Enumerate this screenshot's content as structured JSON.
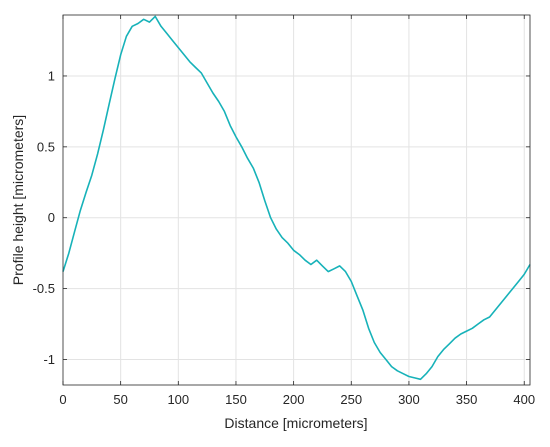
{
  "chart_data": {
    "type": "line",
    "title": "",
    "xlabel": "Distance [micrometers]",
    "ylabel": "Profile height [micrometers]",
    "xlim": [
      0,
      405
    ],
    "ylim": [
      -1.18,
      1.43
    ],
    "xticks": [
      0,
      50,
      100,
      150,
      200,
      250,
      300,
      350,
      400
    ],
    "xtick_labels": [
      "0",
      "50",
      "100",
      "150",
      "200",
      "250",
      "300",
      "350",
      "400"
    ],
    "yticks": [
      1,
      0.5,
      0,
      -0.5,
      -1
    ],
    "ytick_labels": [
      "1",
      "0.5",
      "0",
      "-0.5",
      "-1"
    ],
    "grid": true,
    "legend": "none",
    "line_color": "#17b2b9",
    "series": [
      {
        "x": [
          0,
          5,
          10,
          15,
          20,
          25,
          30,
          35,
          40,
          45,
          50,
          55,
          60,
          65,
          70,
          75,
          80,
          85,
          90,
          95,
          100,
          105,
          110,
          115,
          120,
          125,
          130,
          135,
          140,
          145,
          150,
          155,
          160,
          165,
          170,
          175,
          180,
          185,
          190,
          195,
          200,
          205,
          210,
          215,
          220,
          225,
          230,
          235,
          240,
          245,
          250,
          255,
          260,
          265,
          270,
          275,
          280,
          285,
          290,
          295,
          300,
          305,
          310,
          315,
          320,
          325,
          330,
          335,
          340,
          345,
          350,
          355,
          360,
          365,
          370,
          375,
          380,
          385,
          390,
          395,
          400,
          405
        ],
        "values": [
          -0.38,
          -0.25,
          -0.1,
          0.05,
          0.18,
          0.3,
          0.45,
          0.62,
          0.8,
          0.98,
          1.15,
          1.28,
          1.35,
          1.37,
          1.4,
          1.38,
          1.42,
          1.35,
          1.3,
          1.25,
          1.2,
          1.15,
          1.1,
          1.06,
          1.02,
          0.95,
          0.88,
          0.82,
          0.75,
          0.65,
          0.57,
          0.5,
          0.42,
          0.35,
          0.25,
          0.12,
          0.0,
          -0.08,
          -0.14,
          -0.18,
          -0.23,
          -0.26,
          -0.3,
          -0.33,
          -0.3,
          -0.34,
          -0.38,
          -0.36,
          -0.34,
          -0.38,
          -0.45,
          -0.55,
          -0.65,
          -0.78,
          -0.88,
          -0.95,
          -1.0,
          -1.05,
          -1.08,
          -1.1,
          -1.12,
          -1.13,
          -1.14,
          -1.1,
          -1.05,
          -0.98,
          -0.93,
          -0.89,
          -0.85,
          -0.82,
          -0.8,
          -0.78,
          -0.75,
          -0.72,
          -0.7,
          -0.65,
          -0.6,
          -0.55,
          -0.5,
          -0.45,
          -0.4,
          -0.33
        ]
      }
    ]
  }
}
